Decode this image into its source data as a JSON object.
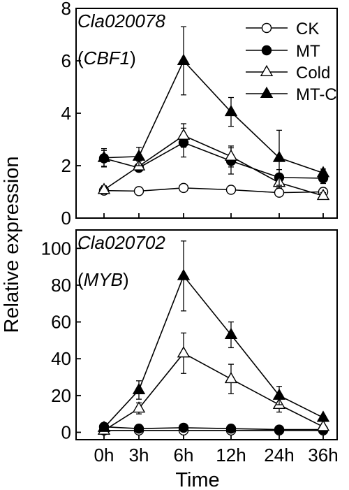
{
  "chart_data": [
    {
      "type": "line",
      "panel_label": "Cla020078",
      "panel_sublabel": "(CBF1)",
      "panel_sublabel_parts": [
        "(",
        "CBF1",
        ")"
      ],
      "categories": [
        "0h",
        "3h",
        "6h",
        "12h",
        "24h",
        "36h"
      ],
      "ylim": [
        0,
        8
      ],
      "yticks": [
        0,
        2,
        4,
        6,
        8
      ],
      "grid": false,
      "legend_position": "top-right",
      "series": [
        {
          "name": "CK",
          "marker": "circle-open",
          "values": [
            1.05,
            1.03,
            1.15,
            1.08,
            0.97,
            1.0
          ],
          "errors": [
            0.12,
            0.08,
            0.08,
            0.1,
            0.08,
            0.15
          ]
        },
        {
          "name": "MT",
          "marker": "circle-filled",
          "values": [
            2.28,
            1.92,
            2.88,
            2.18,
            1.55,
            1.52
          ],
          "errors": [
            0.3,
            0.15,
            0.55,
            0.5,
            0.3,
            0.2
          ]
        },
        {
          "name": "Cold",
          "marker": "triangle-open",
          "values": [
            1.08,
            1.98,
            3.15,
            2.35,
            1.35,
            0.85
          ],
          "errors": [
            0.15,
            0.2,
            0.45,
            0.4,
            0.2,
            0.12
          ]
        },
        {
          "name": "MT-C",
          "marker": "triangle-filled",
          "values": [
            2.3,
            2.35,
            6.0,
            4.05,
            2.3,
            1.72
          ],
          "errors": [
            0.35,
            0.35,
            1.3,
            0.55,
            1.05,
            0.15
          ]
        }
      ]
    },
    {
      "type": "line",
      "panel_label": "Cla020702",
      "panel_sublabel": "(MYB)",
      "panel_sublabel_parts": [
        "(",
        "MYB",
        ")"
      ],
      "categories": [
        "0h",
        "3h",
        "6h",
        "12h",
        "24h",
        "36h"
      ],
      "ylim": [
        -4,
        110
      ],
      "yticks": [
        0,
        20,
        40,
        60,
        80,
        100
      ],
      "xlabel": "Time",
      "grid": false,
      "series": [
        {
          "name": "CK",
          "marker": "circle-open",
          "values": [
            1.0,
            1.0,
            1.0,
            1.0,
            1.0,
            1.0
          ],
          "errors": [
            0.5,
            0.5,
            0.5,
            0.5,
            0.5,
            0.5
          ]
        },
        {
          "name": "MT",
          "marker": "circle-filled",
          "values": [
            3.0,
            2.0,
            2.5,
            2.0,
            1.5,
            1.5
          ],
          "errors": [
            1.0,
            0.5,
            0.5,
            0.5,
            0.5,
            0.5
          ]
        },
        {
          "name": "Cold",
          "marker": "triangle-open",
          "values": [
            1.0,
            13.0,
            43.0,
            29.0,
            15.0,
            3.0
          ],
          "errors": [
            1.0,
            3.0,
            11.0,
            8.0,
            4.0,
            1.0
          ]
        },
        {
          "name": "MT-C",
          "marker": "triangle-filled",
          "values": [
            2.5,
            23.0,
            85.0,
            53.0,
            20.0,
            8.0
          ],
          "errors": [
            1.0,
            5.0,
            19.0,
            7.0,
            5.0,
            1.0
          ]
        }
      ]
    }
  ],
  "shared": {
    "ylabel": "Relative expression",
    "xlabel": "Time"
  }
}
